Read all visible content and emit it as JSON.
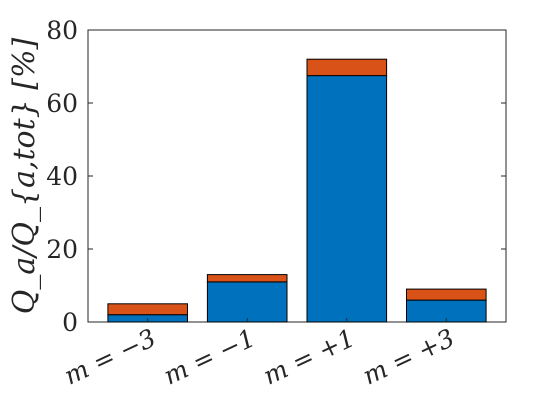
{
  "chart_data": {
    "type": "bar",
    "stacked": true,
    "categories": [
      "m = −3",
      "m = −1",
      "m = +1",
      "m = +3"
    ],
    "series": [
      {
        "values": [
          2,
          11,
          67.5,
          6
        ],
        "color": "#0072BD"
      },
      {
        "values": [
          3,
          2,
          4.5,
          3
        ],
        "color": "#D95319"
      }
    ],
    "ylabel": "Q_a/Q_{a,tot} [%]",
    "ylim": [
      0,
      80
    ],
    "yticks": [
      "0",
      "20",
      "40",
      "60",
      "80"
    ],
    "grid": false,
    "legend": "none"
  }
}
